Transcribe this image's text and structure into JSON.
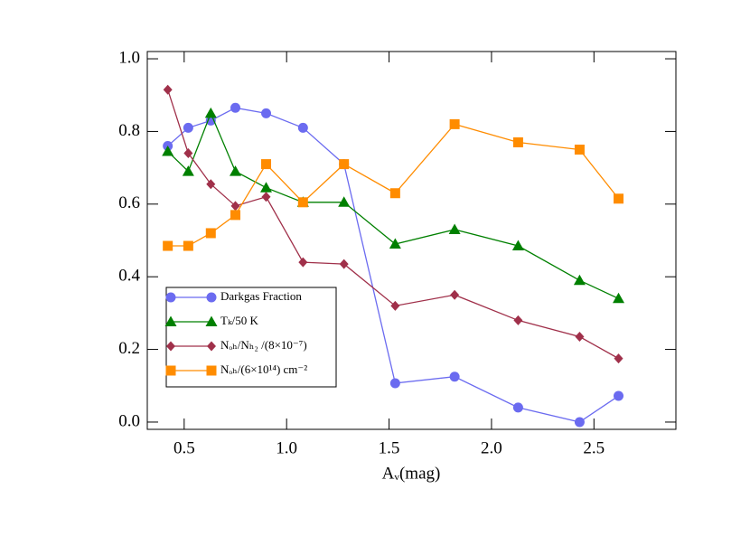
{
  "chart_data": {
    "type": "line",
    "x_label": "Aᵥ(mag)",
    "x": [
      0.42,
      0.52,
      0.63,
      0.75,
      0.9,
      1.08,
      1.28,
      1.53,
      1.82,
      2.13,
      2.43,
      2.62
    ],
    "series": [
      {
        "name": "Darkgas Fraction",
        "color": "#6b6bf0",
        "marker": "circle",
        "values": [
          0.76,
          0.81,
          0.83,
          0.865,
          0.85,
          0.81,
          0.71,
          0.107,
          0.125,
          0.04,
          0.0,
          0.072
        ]
      },
      {
        "name": "Tₖ/50 K",
        "color": "#008000",
        "marker": "triangle",
        "values": [
          0.745,
          0.69,
          0.85,
          0.69,
          0.645,
          0.605,
          0.605,
          0.49,
          0.53,
          0.485,
          0.39,
          0.34
        ]
      },
      {
        "name": "Nₒₕ/Nₕ₂ /(8×10⁻⁷)",
        "color": "#a0304a",
        "marker": "diamond",
        "values": [
          0.915,
          0.74,
          0.655,
          0.595,
          0.62,
          0.44,
          0.435,
          0.32,
          0.35,
          0.28,
          0.235,
          0.175
        ]
      },
      {
        "name": "Nₒₕ/(6×10¹⁴) cm⁻²",
        "color": "#ff8c00",
        "marker": "square",
        "values": [
          0.485,
          0.485,
          0.52,
          0.57,
          0.71,
          0.605,
          0.71,
          0.63,
          0.82,
          0.77,
          0.75,
          0.615
        ]
      }
    ],
    "xlim": [
      0.32,
      2.9
    ],
    "ylim": [
      -0.02,
      1.02
    ],
    "xticks": [
      0.5,
      {
        "value": 1,
        "label": "1.0"
      },
      1.5,
      {
        "value": 2,
        "label": "2.0"
      },
      2.5
    ],
    "yticks": [
      {
        "value": 0,
        "label": "0.0"
      },
      0.2,
      0.4,
      0.6,
      0.8,
      {
        "value": 1,
        "label": "1.0"
      }
    ],
    "legend": "lower left"
  }
}
